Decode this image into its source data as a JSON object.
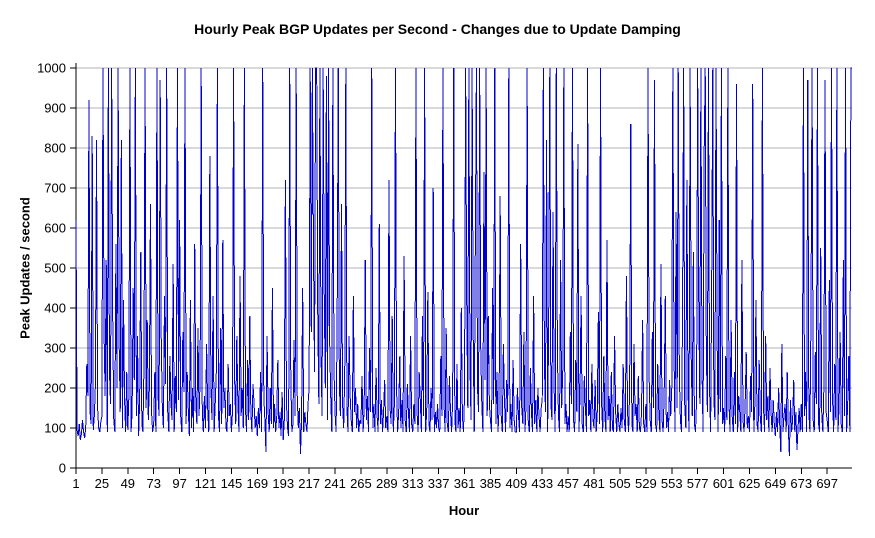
{
  "chart_data": {
    "type": "line",
    "title": "Hourly Peak BGP Updates per Second - Changes due to Update Damping",
    "xlabel": "Hour",
    "ylabel": "Peak Updates / second",
    "ylim": [
      0,
      1000
    ],
    "x_range": [
      1,
      720
    ],
    "x_tick_interval": 24,
    "grid": true,
    "legend": "none",
    "y_ticks": [
      0,
      100,
      200,
      300,
      400,
      500,
      600,
      700,
      800,
      900,
      1000
    ],
    "x_ticks": [
      1,
      25,
      49,
      73,
      97,
      121,
      145,
      169,
      193,
      217,
      241,
      265,
      289,
      313,
      337,
      361,
      385,
      409,
      433,
      457,
      481,
      505,
      529,
      553,
      577,
      601,
      625,
      649,
      673,
      697
    ],
    "series": [
      {
        "name": "Peak BGP updates per second",
        "color": "#0000CC",
        "x_start": 1,
        "x_step": 1,
        "values": [
          620,
          95,
          80,
          110,
          70,
          85,
          120,
          90,
          75,
          100,
          260,
          180,
          920,
          140,
          110,
          830,
          95,
          130,
          210,
          820,
          150,
          100,
          90,
          115,
          130,
          1000,
          340,
          180,
          520,
          90,
          1000,
          240,
          160,
          1000,
          380,
          120,
          90,
          560,
          200,
          1000,
          310,
          140,
          820,
          100,
          420,
          170,
          90,
          240,
          95,
          180,
          1000,
          90,
          140,
          450,
          220,
          1000,
          130,
          330,
          80,
          170,
          540,
          110,
          90,
          260,
          1000,
          150,
          370,
          120,
          200,
          660,
          140,
          90,
          110,
          240,
          90,
          1000,
          180,
          130,
          970,
          320,
          150,
          100,
          430,
          210,
          1000,
          140,
          90,
          280,
          160,
          120,
          510,
          90,
          230,
          140,
          1000,
          170,
          620,
          130,
          90,
          340,
          190,
          1000,
          110,
          240,
          150,
          80,
          420,
          100,
          200,
          90,
          560,
          160,
          110,
          350,
          130,
          220,
          1000,
          140,
          90,
          180,
          100,
          310,
          150,
          90,
          780,
          200,
          120,
          430,
          90,
          160,
          240,
          1000,
          130,
          90,
          350,
          110,
          570,
          150,
          200,
          100,
          90,
          260,
          130,
          160,
          90,
          140,
          1000,
          220,
          110,
          330,
          160,
          90,
          480,
          130,
          200,
          100,
          1000,
          150,
          90,
          270,
          120,
          380,
          140,
          90,
          210,
          160,
          100,
          130,
          80,
          150,
          100,
          240,
          90,
          1000,
          180,
          120,
          40,
          330,
          140,
          90,
          200,
          110,
          450,
          100,
          160,
          90,
          130,
          270,
          100,
          140,
          80,
          190,
          70,
          120,
          720,
          160,
          100,
          80,
          1000,
          230,
          90,
          110,
          320,
          130,
          1000,
          180,
          100,
          150,
          35,
          120,
          450,
          90,
          140,
          110,
          90,
          160,
          200,
          1000,
          340,
          1000,
          560,
          240,
          1000,
          1000,
          380,
          160,
          1000,
          290,
          130,
          1000,
          440,
          200,
          980,
          120,
          1000,
          320,
          180,
          90,
          1000,
          250,
          140,
          90,
          380,
          1000,
          210,
          130,
          660,
          160,
          100,
          240,
          1000,
          150,
          90,
          330,
          180,
          120,
          90,
          430,
          140,
          200,
          100,
          160,
          90,
          120,
          110,
          230,
          90,
          150,
          520,
          120,
          180,
          90,
          300,
          140,
          1000,
          100,
          160,
          90,
          250,
          130,
          90,
          610,
          110,
          170,
          90,
          140,
          220,
          100,
          130,
          90,
          720,
          150,
          110,
          380,
          90,
          160,
          1000,
          200,
          90,
          140,
          280,
          100,
          170,
          90,
          530,
          120,
          90,
          210,
          140,
          90,
          330,
          110,
          90,
          160,
          110,
          1000,
          140,
          90,
          240,
          170,
          90,
          380,
          130,
          1000,
          90,
          150,
          440,
          110,
          90,
          200,
          120,
          700,
          90,
          140,
          100,
          160,
          100,
          90,
          280,
          130,
          1000,
          160,
          90,
          350,
          110,
          90,
          230,
          140,
          90,
          170,
          1000,
          120,
          90,
          260,
          100,
          150,
          90,
          400,
          130,
          90,
          180,
          1000,
          420,
          150,
          1000,
          260,
          120,
          1000,
          340,
          90,
          560,
          1000,
          200,
          140,
          1000,
          300,
          160,
          90,
          740,
          220,
          1000,
          130,
          380,
          160,
          120,
          90,
          450,
          160,
          1000,
          110,
          240,
          90,
          150,
          680,
          130,
          90,
          310,
          170,
          90,
          220,
          140,
          1000,
          100,
          160,
          90,
          270,
          120,
          90,
          90,
          200,
          130,
          90,
          560,
          150,
          110,
          340,
          90,
          160,
          1000,
          120,
          90,
          250,
          140,
          90,
          430,
          110,
          170,
          90,
          200,
          130,
          90,
          150,
          170,
          1000,
          260,
          140,
          820,
          90,
          380,
          1000,
          160,
          120,
          640,
          200,
          90,
          1000,
          300,
          130,
          90,
          520,
          150,
          240,
          1000,
          110,
          160,
          90,
          130,
          90,
          340,
          160,
          1000,
          120,
          90,
          270,
          140,
          810,
          90,
          180,
          430,
          110,
          90,
          230,
          150,
          90,
          1000,
          130,
          170,
          90,
          260,
          120,
          100,
          220,
          90,
          140,
          390,
          110,
          1000,
          160,
          90,
          280,
          130,
          90,
          570,
          120,
          180,
          90,
          240,
          100,
          90,
          330,
          140,
          90,
          160,
          110,
          90,
          150,
          100,
          260,
          120,
          90,
          480,
          140,
          90,
          200,
          860,
          110,
          90,
          310,
          130,
          160,
          90,
          230,
          100,
          90,
          140,
          370,
          110,
          90,
          160,
          90,
          1000,
          230,
          120,
          90,
          340,
          150,
          970,
          110,
          90,
          260,
          140,
          90,
          510,
          120,
          90,
          190,
          430,
          100,
          140,
          90,
          220,
          130,
          200,
          1000,
          310,
          90,
          640,
          150,
          1000,
          240,
          120,
          90,
          380,
          1000,
          160,
          100,
          720,
          200,
          90,
          1000,
          280,
          130,
          540,
          110,
          90,
          170,
          1000,
          420,
          160,
          1000,
          250,
          90,
          780,
          1000,
          300,
          140,
          1000,
          200,
          90,
          460,
          1000,
          170,
          120,
          1000,
          330,
          90,
          620,
          140,
          1000,
          110,
          150,
          90,
          280,
          120,
          1000,
          160,
          90,
          370,
          130,
          90,
          240,
          110,
          960,
          90,
          180,
          140,
          90,
          520,
          120,
          90,
          160,
          290,
          100,
          130,
          90,
          230,
          140,
          960,
          90,
          160,
          420,
          110,
          90,
          270,
          130,
          90,
          1000,
          150,
          90,
          330,
          120,
          180,
          90,
          250,
          140,
          90,
          170,
          110,
          80,
          140,
          90,
          200,
          110,
          40,
          310,
          90,
          130,
          160,
          90,
          240,
          100,
          30,
          170,
          90,
          120,
          220,
          90,
          140,
          45,
          100,
          150,
          90,
          160,
          90,
          1000,
          130,
          240,
          90,
          970,
          140,
          90,
          380,
          1000,
          120,
          90,
          290,
          160,
          1000,
          110,
          90,
          550,
          130,
          90,
          210,
          970,
          140,
          120,
          90,
          470,
          140,
          1000,
          170,
          90,
          260,
          120,
          1000,
          90,
          150,
          340,
          110,
          90,
          520,
          130,
          1000,
          90,
          160,
          280,
          90,
          1000,
          1000
        ]
      }
    ]
  },
  "colors": {
    "line": "#0000CC",
    "grid": "#b3b3b3",
    "axis": "#000000",
    "background": "#FFFFFF",
    "text": "#000000"
  }
}
